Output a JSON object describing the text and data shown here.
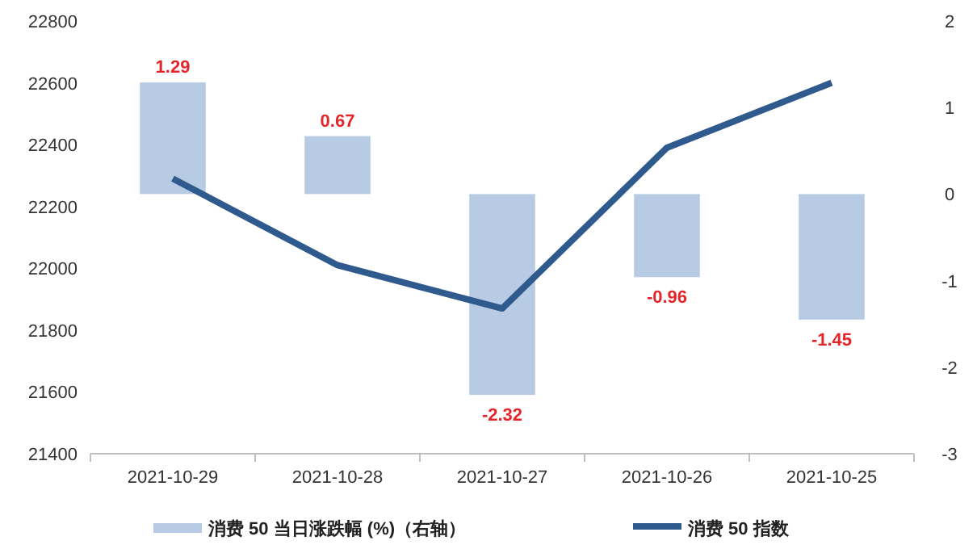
{
  "chart_data": {
    "type": "bar",
    "categories": [
      "2021-10-29",
      "2021-10-28",
      "2021-10-27",
      "2021-10-26",
      "2021-10-25"
    ],
    "series": [
      {
        "name": "消费 50 当日涨跌幅 (%)（右轴）",
        "axis": "y2",
        "color": "#b7cce4",
        "values": [
          1.29,
          0.67,
          -2.32,
          -0.96,
          -1.45
        ],
        "value_labels": [
          "1.29",
          "0.67",
          "-2.32",
          "-0.96",
          "-1.45"
        ]
      },
      {
        "name": "消费 50 指数",
        "type": "line",
        "color": "#2f5a8e",
        "values": [
          22290,
          22010,
          21870,
          22390,
          22600
        ]
      }
    ],
    "ylim": [
      21400,
      22800
    ],
    "yticks": [
      21400,
      21600,
      21800,
      22000,
      22200,
      22400,
      22600,
      22800
    ],
    "y2lim": [
      -3,
      2
    ],
    "y2ticks": [
      -3,
      -2,
      -1,
      0,
      1,
      2
    ],
    "grid": false,
    "legend": "bottom"
  }
}
